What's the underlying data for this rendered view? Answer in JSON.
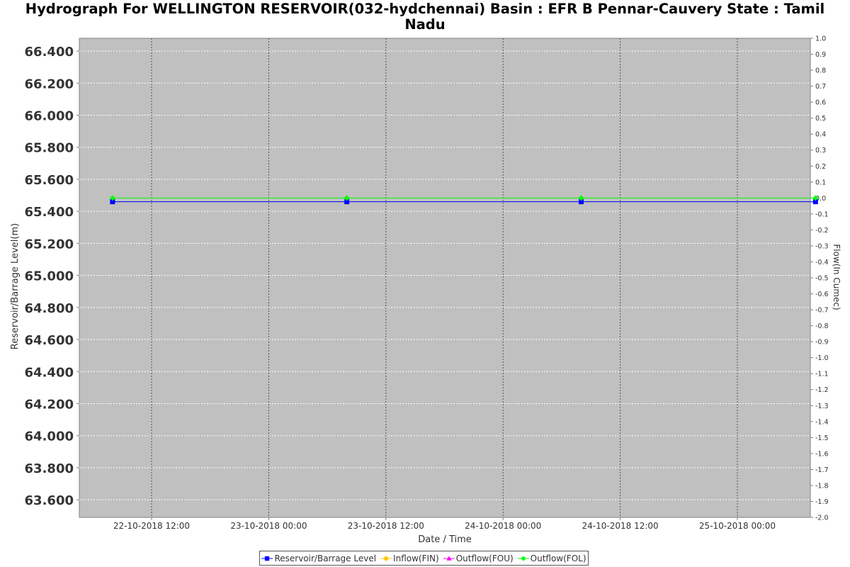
{
  "chart_data": {
    "type": "line",
    "title_line1": "Hydrograph For WELLINGTON RESERVOIR(032-hydchennai) Basin : EFR B Pennar-Cauvery State : Tamil",
    "title_line2": "Nadu",
    "xlabel": "Date / Time",
    "ylabel": "Reservoir/Barrage Level(m)",
    "y2label": "Flow(In Cumec)",
    "x_ticks": [
      "22-10-2018 12:00",
      "23-10-2018 00:00",
      "23-10-2018 12:00",
      "24-10-2018 00:00",
      "24-10-2018 12:00",
      "25-10-2018 00:00"
    ],
    "y_ticks": [
      "66.400",
      "66.200",
      "66.000",
      "65.800",
      "65.600",
      "65.400",
      "65.200",
      "65.000",
      "64.800",
      "64.600",
      "64.400",
      "64.200",
      "64.000",
      "63.800",
      "63.600"
    ],
    "y2_ticks": [
      "1.0",
      "0.9",
      "0.8",
      "0.7",
      "0.6",
      "0.5",
      "0.4",
      "0.3",
      "0.2",
      "0.1",
      "0.0",
      "-0.1",
      "-0.2",
      "-0.3",
      "-0.4",
      "-0.5",
      "-0.6",
      "-0.7",
      "-0.8",
      "-0.9",
      "-1.0",
      "-1.1",
      "-1.2",
      "-1.3",
      "-1.4",
      "-1.5",
      "-1.6",
      "-1.7",
      "-1.8",
      "-1.9",
      "-2.0"
    ],
    "ylim": [
      63.49,
      66.48
    ],
    "y2lim": [
      -2.0,
      1.0
    ],
    "grid": true,
    "legend_position": "bottom",
    "series": [
      {
        "name": "Reservoir/Barrage Level",
        "axis": "left",
        "color": "#0000ff",
        "marker": "square",
        "x": [
          "22-10-2018 08:00",
          "23-10-2018 08:00",
          "24-10-2018 08:00",
          "25-10-2018 08:00"
        ],
        "values": [
          65.46,
          65.46,
          65.46,
          65.46
        ]
      },
      {
        "name": "Inflow(FIN)",
        "axis": "right",
        "color": "#ffc800",
        "marker": "circle",
        "x": [],
        "values": []
      },
      {
        "name": "Outflow(FOU)",
        "axis": "right",
        "color": "#ff00ff",
        "marker": "triangle",
        "x": [],
        "values": []
      },
      {
        "name": "Outflow(FOL)",
        "axis": "right",
        "color": "#00ff00",
        "marker": "diamond",
        "x": [
          "22-10-2018 08:00",
          "23-10-2018 08:00",
          "24-10-2018 08:00",
          "25-10-2018 08:00"
        ],
        "values": [
          0.0,
          0.0,
          0.0,
          0.0
        ]
      }
    ]
  }
}
